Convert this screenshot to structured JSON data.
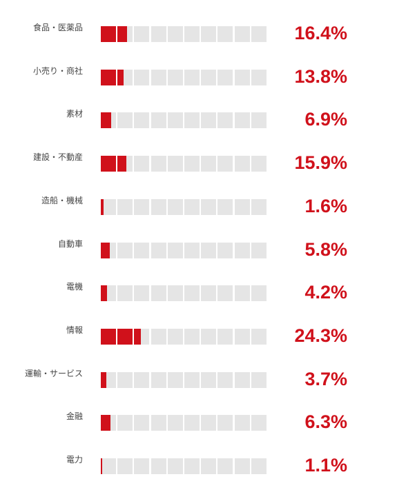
{
  "chart_data": {
    "type": "bar",
    "orientation": "horizontal",
    "categories": [
      "食品・医薬品",
      "小売り・商社",
      "素材",
      "建設・不動産",
      "造船・機械",
      "自動車",
      "電機",
      "情報",
      "運輸・サービス",
      "金融",
      "電力"
    ],
    "values": [
      16.4,
      13.8,
      6.9,
      15.9,
      1.6,
      5.8,
      4.2,
      24.3,
      3.7,
      6.3,
      1.1
    ],
    "labels": [
      "16.4%",
      "13.8%",
      "6.9%",
      "15.9%",
      "1.6%",
      "5.8%",
      "4.2%",
      "24.3%",
      "3.7%",
      "6.3%",
      "1.1%"
    ],
    "unit": "%",
    "xlim": [
      0,
      100
    ],
    "segments": 10,
    "segment_value": 10,
    "grid": false,
    "legend": "none",
    "colors": {
      "fill": "#d0111b",
      "track": "#e5e5e5",
      "label": "#444444",
      "value_text": "#d0111b"
    }
  }
}
